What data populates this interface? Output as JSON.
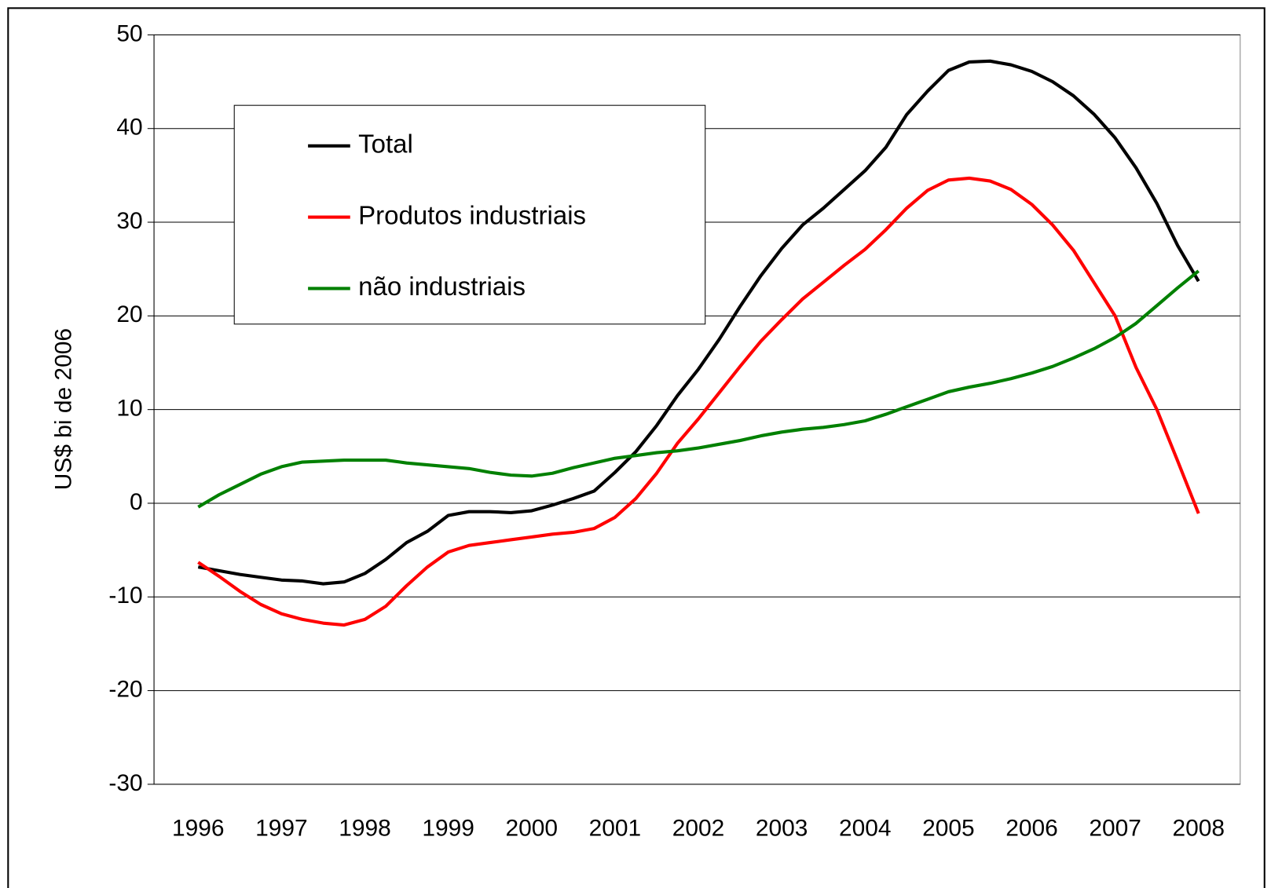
{
  "chart_data": {
    "type": "line",
    "y_label": "US$ bi de 2006",
    "x": [
      1996,
      1996.25,
      1996.5,
      1996.75,
      1997,
      1997.25,
      1997.5,
      1997.75,
      1998,
      1998.25,
      1998.5,
      1998.75,
      1999,
      1999.25,
      1999.5,
      1999.75,
      2000,
      2000.25,
      2000.5,
      2000.75,
      2001,
      2001.25,
      2001.5,
      2001.75,
      2002,
      2002.25,
      2002.5,
      2002.75,
      2003,
      2003.25,
      2003.5,
      2003.75,
      2004,
      2004.25,
      2004.5,
      2004.75,
      2005,
      2005.25,
      2005.5,
      2005.75,
      2006,
      2006.25,
      2006.5,
      2006.75,
      2007,
      2007.25,
      2007.5,
      2007.75,
      2008
    ],
    "series": [
      {
        "name": "Total",
        "color": "#000000",
        "values": [
          -6.8,
          -7.2,
          -7.6,
          -7.9,
          -8.2,
          -8.3,
          -8.6,
          -8.4,
          -7.5,
          -6,
          -4.2,
          -3,
          -1.3,
          -0.9,
          -0.9,
          -1,
          -0.8,
          -0.2,
          0.5,
          1.3,
          3.3,
          5.5,
          8.3,
          11.5,
          14.3,
          17.5,
          21,
          24.3,
          27.2,
          29.7,
          31.5,
          33.5,
          35.5,
          38,
          41.5,
          44,
          46.2,
          47.1,
          47.2,
          46.8,
          46.1,
          45,
          43.5,
          41.5,
          39,
          35.8,
          32,
          27.5,
          23.7
        ]
      },
      {
        "name": "Produtos industriais",
        "color": "#ff0000",
        "values": [
          -6.3,
          -7.8,
          -9.4,
          -10.8,
          -11.8,
          -12.4,
          -12.8,
          -13,
          -12.4,
          -11,
          -8.8,
          -6.8,
          -5.2,
          -4.5,
          -4.2,
          -3.9,
          -3.6,
          -3.3,
          -3.1,
          -2.7,
          -1.5,
          0.5,
          3.2,
          6.4,
          9,
          11.8,
          14.6,
          17.3,
          19.6,
          21.8,
          23.6,
          25.4,
          27.1,
          29.2,
          31.5,
          33.4,
          34.5,
          34.7,
          34.4,
          33.5,
          31.9,
          29.7,
          27,
          23.5,
          20,
          14.5,
          10,
          4.5,
          -1.1
        ]
      },
      {
        "name": "não industriais",
        "color": "#008000",
        "values": [
          -0.4,
          0.9,
          2,
          3.1,
          3.9,
          4.4,
          4.5,
          4.6,
          4.6,
          4.6,
          4.3,
          4.1,
          3.9,
          3.7,
          3.3,
          3,
          2.9,
          3.2,
          3.8,
          4.3,
          4.8,
          5.1,
          5.4,
          5.6,
          5.9,
          6.3,
          6.7,
          7.2,
          7.6,
          7.9,
          8.1,
          8.4,
          8.8,
          9.5,
          10.3,
          11.1,
          11.9,
          12.4,
          12.8,
          13.3,
          13.9,
          14.6,
          15.5,
          16.5,
          17.7,
          19.2,
          21.1,
          23,
          24.8
        ]
      }
    ],
    "xlim": [
      1995.47,
      2008.5
    ],
    "xticks": [
      1996,
      1997,
      1998,
      1999,
      2000,
      2001,
      2002,
      2003,
      2004,
      2005,
      2006,
      2007,
      2008
    ],
    "ylim": [
      -30,
      50
    ],
    "yticks": [
      -30,
      -20,
      -10,
      0,
      10,
      20,
      30,
      40,
      50
    ],
    "grid": true,
    "legend": "upper-left"
  }
}
